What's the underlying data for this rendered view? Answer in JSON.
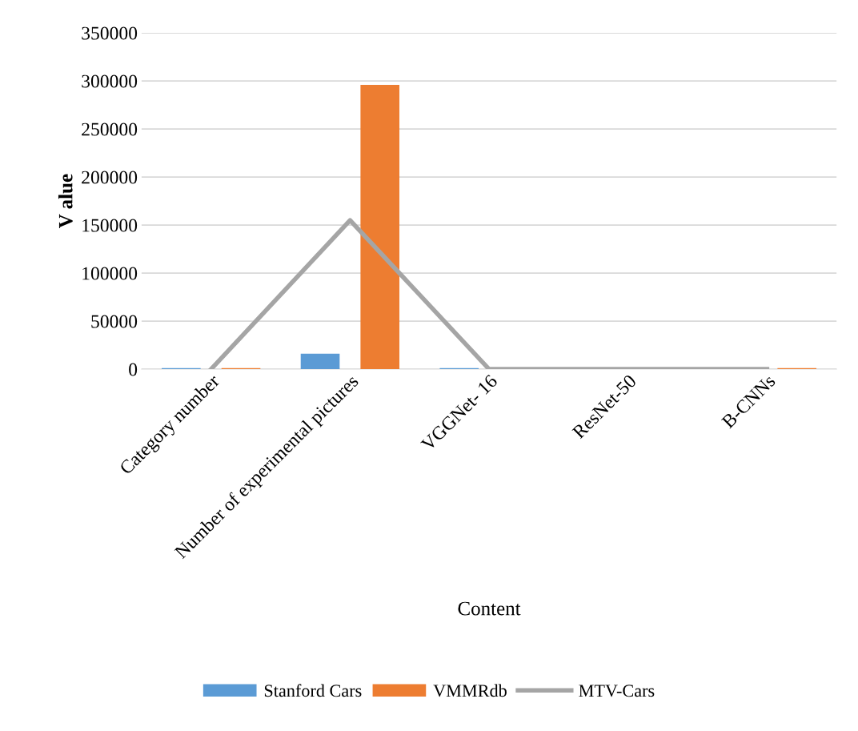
{
  "chart_data": {
    "type": "bar",
    "xlabel": "Content",
    "ylabel": "V alue",
    "categories": [
      "Category number",
      "Number of experimental pictures",
      "VGGNet- 16",
      "ResNet-50",
      "B-CNNs"
    ],
    "series": [
      {
        "name": "Stanford Cars",
        "color": "#5b9bd5",
        "values": [
          1000,
          16000,
          1000,
          0,
          0
        ]
      },
      {
        "name": "VMMRdb",
        "color": "#ed7d31",
        "values": [
          1000,
          296000,
          0,
          0,
          1000
        ]
      },
      {
        "name": "MTV-Cars",
        "type": "line",
        "color": "#a5a5a5",
        "values": [
          0,
          155000,
          0,
          0,
          0
        ]
      }
    ],
    "ylim": [
      0,
      350000
    ],
    "yticks": [
      0,
      50000,
      100000,
      150000,
      200000,
      250000,
      300000,
      350000
    ],
    "grid": "y",
    "legend": "bottom"
  }
}
